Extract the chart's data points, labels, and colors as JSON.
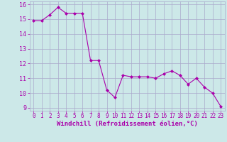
{
  "x": [
    0,
    1,
    2,
    3,
    4,
    5,
    6,
    7,
    8,
    9,
    10,
    11,
    12,
    13,
    14,
    15,
    16,
    17,
    18,
    19,
    20,
    21,
    22,
    23
  ],
  "y": [
    14.9,
    14.9,
    15.3,
    15.8,
    15.4,
    15.4,
    15.4,
    12.2,
    12.2,
    10.2,
    9.7,
    11.2,
    11.1,
    11.1,
    11.1,
    11.0,
    11.3,
    11.5,
    11.2,
    10.6,
    11.0,
    10.4,
    10.0,
    9.1
  ],
  "line_color": "#aa00aa",
  "marker": "D",
  "marker_size": 2,
  "bg_color": "#cce8e8",
  "grid_color": "#aaaacc",
  "xlabel": "Windchill (Refroidissement éolien,°C)",
  "xlabel_color": "#aa00aa",
  "xlim": [
    -0.5,
    23.5
  ],
  "ylim": [
    8.8,
    16.2
  ],
  "yticks": [
    9,
    10,
    11,
    12,
    13,
    14,
    15,
    16
  ],
  "xticks": [
    0,
    1,
    2,
    3,
    4,
    5,
    6,
    7,
    8,
    9,
    10,
    11,
    12,
    13,
    14,
    15,
    16,
    17,
    18,
    19,
    20,
    21,
    22,
    23
  ],
  "tick_color": "#aa00aa",
  "tick_fontsize": 5.5,
  "xlabel_fontsize": 6.5
}
